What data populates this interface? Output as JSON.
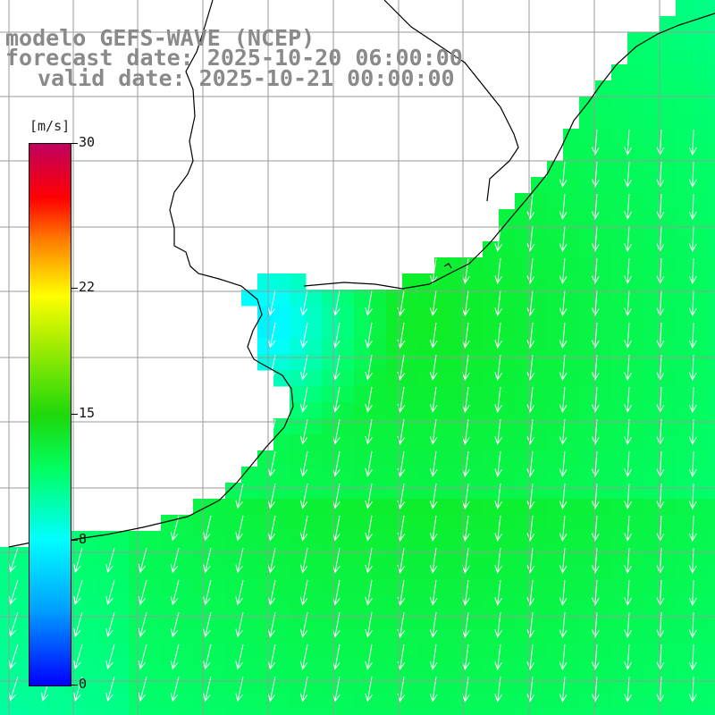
{
  "title": {
    "line1": "modelo GEFS-WAVE (NCEP)",
    "line2": "forecast date: 2025-10-20 06:00:00",
    "line3": "valid date: 2025-10-21 00:00:00"
  },
  "colorbar": {
    "units": "[m/s]",
    "ticks": [
      {
        "label": "30",
        "value": 30
      },
      {
        "label": "22",
        "value": 22
      },
      {
        "label": "15",
        "value": 15
      },
      {
        "label": "8",
        "value": 8
      },
      {
        "label": "0",
        "value": 0
      }
    ],
    "range": [
      0,
      30
    ],
    "colors": [
      "#0000ff",
      "#00a0ff",
      "#00ffff",
      "#00ff60",
      "#1ed80a",
      "#b8f000",
      "#ffff00",
      "#ff8000",
      "#ff0000",
      "#c00060"
    ]
  },
  "map": {
    "field": "wind speed",
    "wind_direction": "from north-northeast (vectors pointing south)",
    "typical_speed_range_ms": [
      7,
      14
    ],
    "colors": {
      "land": "#ffffff",
      "grid": "#9a9a9a",
      "coastline": "#000000",
      "vector": "#ffffff"
    }
  }
}
